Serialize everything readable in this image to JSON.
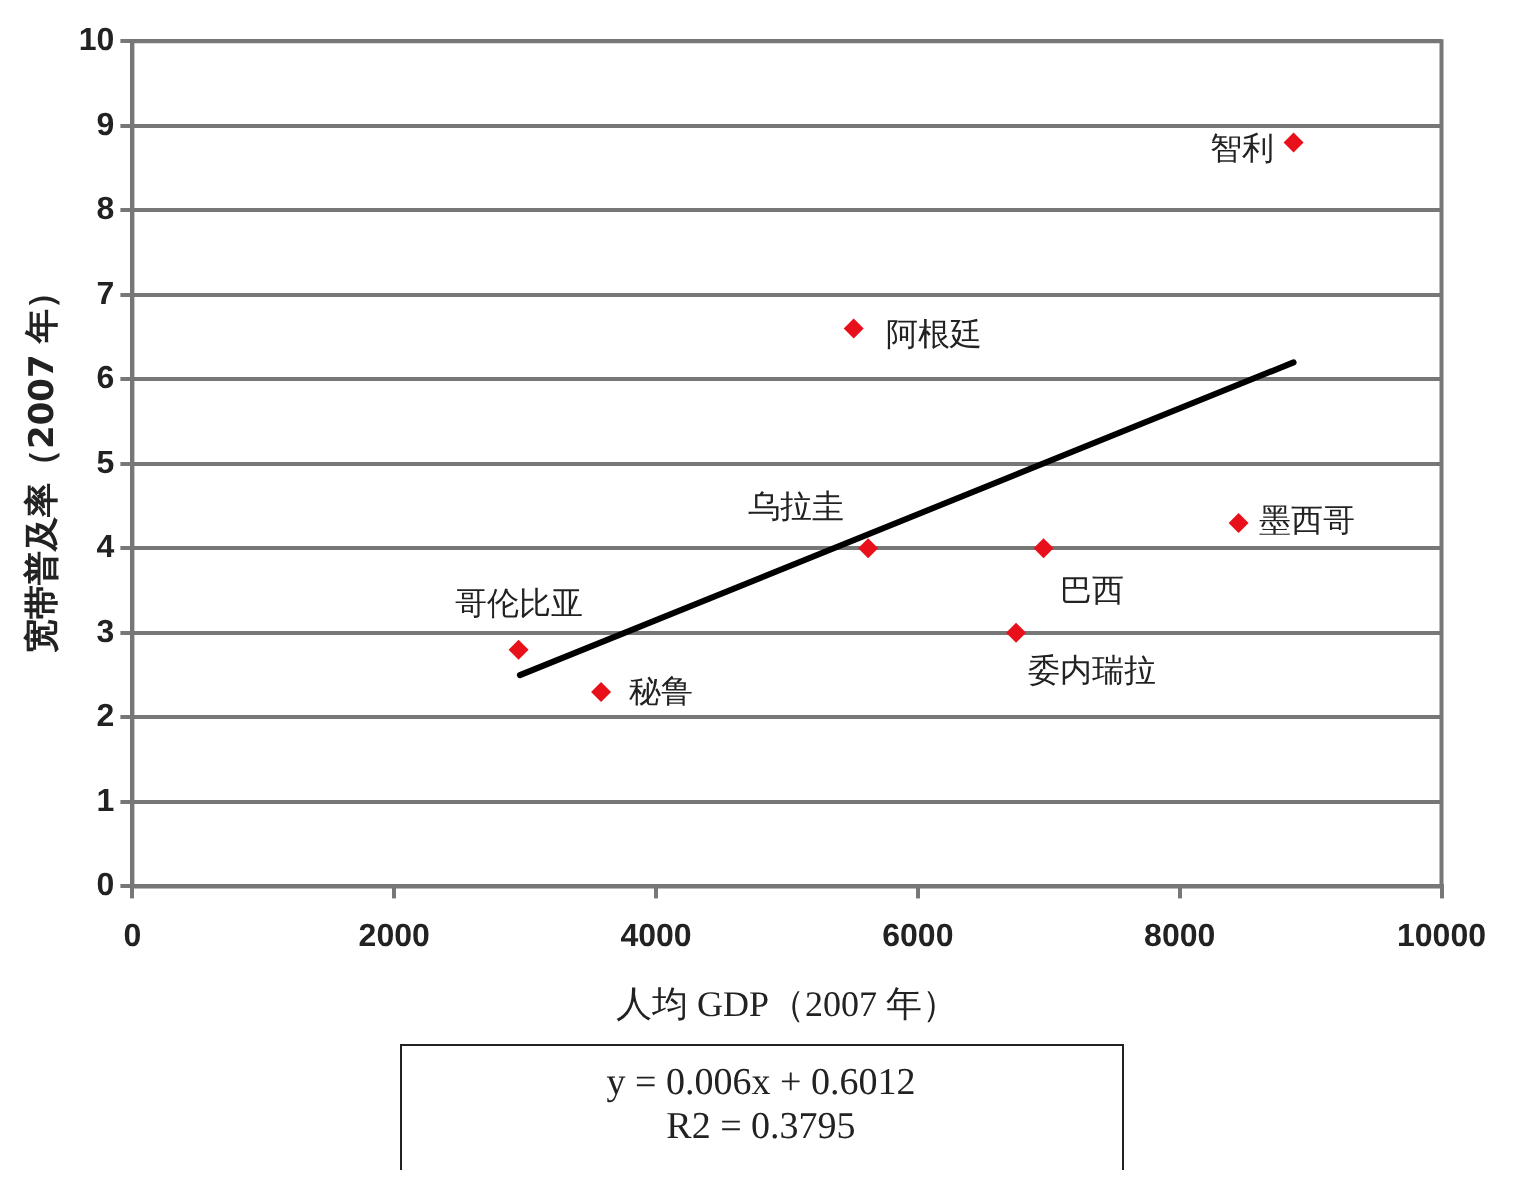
{
  "chart_data": {
    "type": "scatter",
    "xlabel": "人均 GDP（2007 年）",
    "ylabel": "宽带普及率（2007 年）",
    "xlim": [
      0,
      10000
    ],
    "xticks": [
      0,
      2000,
      4000,
      6000,
      8000,
      10000
    ],
    "ylim": [
      0,
      10
    ],
    "yticks": [
      0,
      1,
      2,
      3,
      4,
      5,
      6,
      7,
      8,
      9,
      10
    ],
    "grid": "y",
    "legend": false,
    "marker": "diamond",
    "series": [
      {
        "type": "scatter",
        "color": "#e8101a",
        "x": [
          2950,
          3580,
          5510,
          5620,
          6960,
          6750,
          8450,
          8870
        ],
        "values": [
          2.8,
          2.3,
          6.6,
          4.0,
          4.0,
          3.0,
          4.3,
          8.8
        ]
      },
      {
        "type": "line",
        "color": "#000000",
        "marker": "none",
        "x": [
          2960,
          8870
        ],
        "values": [
          2.5,
          6.2
        ]
      }
    ],
    "annotations": [
      {
        "text": "哥伦比亚",
        "x": 2950,
        "y": 2.8
      },
      {
        "text": "秘鲁",
        "x": 3580,
        "y": 2.3
      },
      {
        "text": "阿根廷",
        "x": 5510,
        "y": 6.6
      },
      {
        "text": "乌拉圭",
        "x": 5620,
        "y": 4.0
      },
      {
        "text": "巴西",
        "x": 6960,
        "y": 4.0
      },
      {
        "text": "委内瑞拉",
        "x": 6750,
        "y": 3.0
      },
      {
        "text": "墨西哥",
        "x": 8450,
        "y": 4.3
      },
      {
        "text": "智利",
        "x": 8870,
        "y": 8.8
      },
      "y = 0.006x + 0.6012",
      "R2 = 0.3795"
    ]
  }
}
